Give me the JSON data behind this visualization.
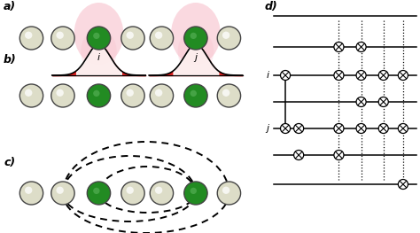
{
  "fig_width": 4.74,
  "fig_height": 2.63,
  "dpi": 100,
  "bg_color": "#ffffff",
  "ion_color_normal": "#ddddc8",
  "ion_color_dark": "#228B22",
  "label_a": "a)",
  "label_b": "b)",
  "label_c": "c)",
  "label_d": "d)",
  "label_i": "i",
  "label_j": "j",
  "pink_color": "#f8c0cc",
  "red_color": "#cc0000"
}
